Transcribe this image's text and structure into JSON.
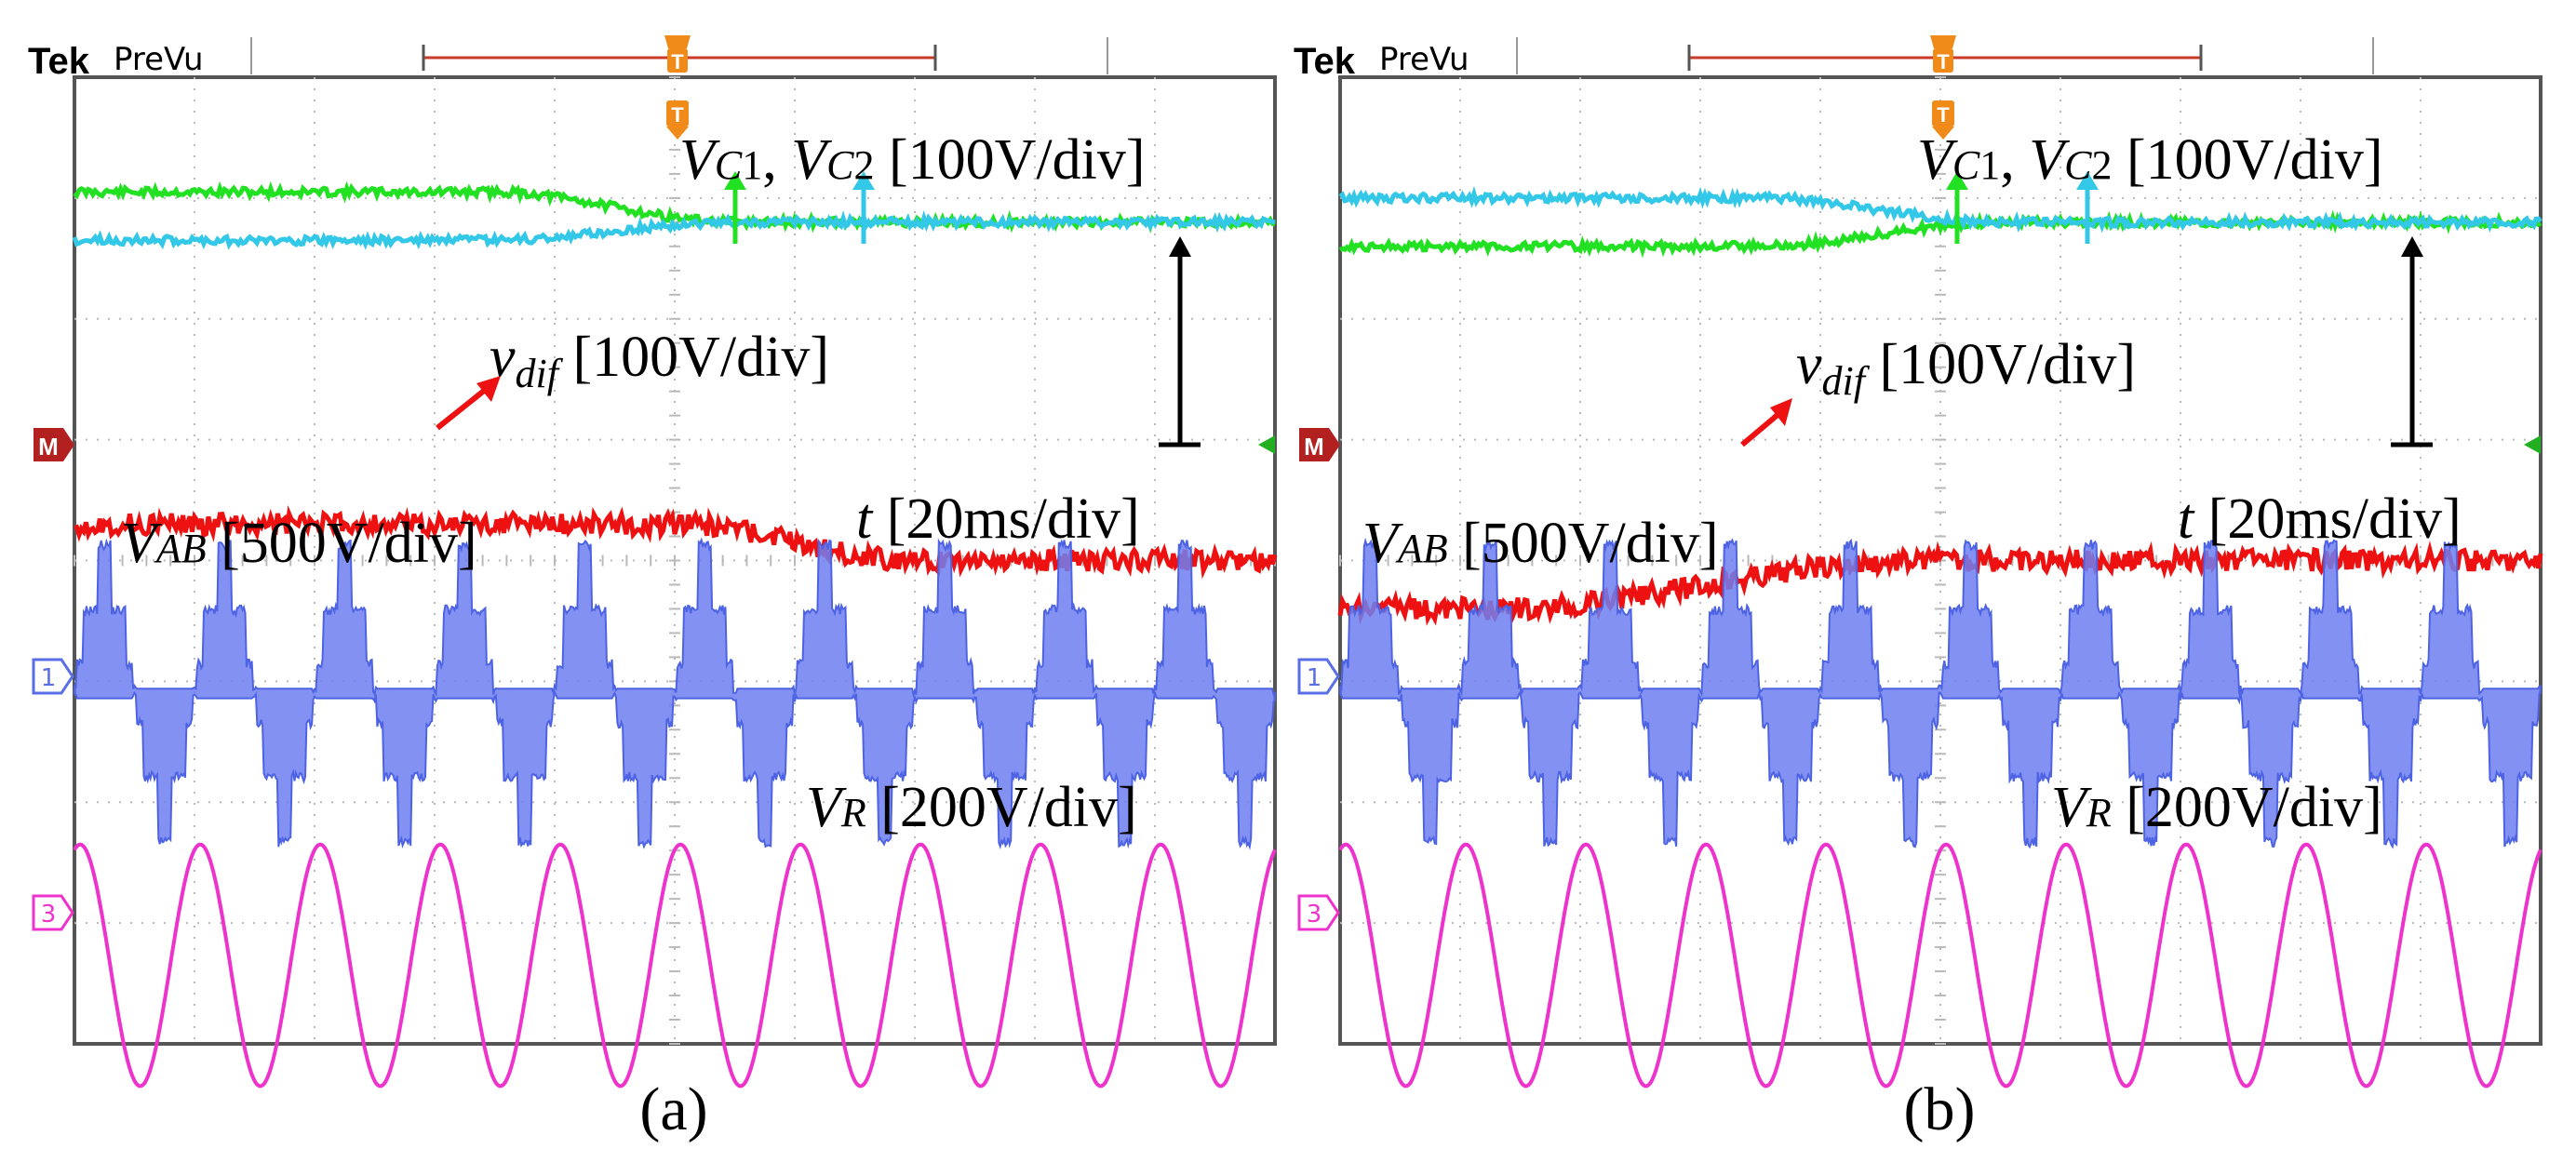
{
  "scope": {
    "brand": "Tek",
    "mode": "PreVu",
    "trigger_marker": "T",
    "markers": {
      "math": "M",
      "ch1": "1",
      "ch3": "3"
    }
  },
  "colors": {
    "vc1": "#22e022",
    "vc2": "#33c8e8",
    "vdif": "#ee1111",
    "vab": "#5a6fe6",
    "vr": "#ee33cc",
    "trigger": "#f08a18",
    "grid": "#b9b9b9",
    "frame": "#555555",
    "record_bar": "#c83a2a",
    "annot_arrow": "#000000"
  },
  "panels": [
    {
      "caption": "(a)",
      "labels": {
        "vc_v1": "V",
        "vc_s1": "C",
        "vc_n1": "1",
        "vc_sep": ", ",
        "vc_v2": "V",
        "vc_s2": "C",
        "vc_n2": "2",
        "vc_scale": " [100V/div]",
        "vdif_v": "v",
        "vdif_s": "dif",
        "vdif_scale": " [100V/div]",
        "t_v": "t",
        "t_scale": " [20ms/div]",
        "vab_v": "V",
        "vab_s": "AB",
        "vab_scale": " [500V/div]",
        "vr_v": "V",
        "vr_s": "R",
        "vr_scale": " [200V/div]"
      }
    },
    {
      "caption": "(b)",
      "labels": {
        "vc_v1": "V",
        "vc_s1": "C",
        "vc_n1": "1",
        "vc_sep": ", ",
        "vc_v2": "V",
        "vc_s2": "C",
        "vc_n2": "2",
        "vc_scale": " [100V/div]",
        "vdif_v": "v",
        "vdif_s": "dif",
        "vdif_scale": " [100V/div]",
        "t_v": "t",
        "t_scale": " [20ms/div]",
        "vab_v": "V",
        "vab_s": "AB",
        "vab_scale": " [500V/div]",
        "vr_v": "V",
        "vr_s": "R",
        "vr_scale": " [200V/div]"
      }
    }
  ],
  "chart_data": [
    {
      "type": "line",
      "panel": "(a)",
      "grid": true,
      "divisions": {
        "x": 10,
        "y": 8
      },
      "x_per_div": "20ms",
      "series": [
        {
          "name": "VC1",
          "div_per_volt": "100V/div",
          "start_level_div": 7.05,
          "end_level_div": 6.8,
          "transition_div": [
            3.5,
            5.5
          ]
        },
        {
          "name": "VC2",
          "div_per_volt": "100V/div",
          "start_level_div": 6.65,
          "end_level_div": 6.8,
          "transition_div": [
            3.5,
            5.5
          ]
        },
        {
          "name": "vdif",
          "div_per_volt": "100V/div",
          "start_level_div": 4.3,
          "end_level_div": 4.0,
          "transition_div": [
            5.0,
            7.0
          ]
        },
        {
          "name": "VAB",
          "div_per_volt": "500V/div",
          "waveform": "multilevel-square",
          "cycles": 10,
          "amplitude_div": 1.2,
          "center_div": 2.9
        },
        {
          "name": "VR",
          "div_per_volt": "200V/div",
          "waveform": "sine",
          "cycles": 10,
          "amplitude_div": 1.0,
          "center_div": 0.65
        }
      ]
    },
    {
      "type": "line",
      "panel": "(b)",
      "grid": true,
      "divisions": {
        "x": 10,
        "y": 8
      },
      "x_per_div": "20ms",
      "series": [
        {
          "name": "VC1",
          "div_per_volt": "100V/div",
          "start_level_div": 6.6,
          "end_level_div": 6.8,
          "transition_div": [
            3.5,
            5.5
          ]
        },
        {
          "name": "VC2",
          "div_per_volt": "100V/div",
          "start_level_div": 7.0,
          "end_level_div": 6.8,
          "transition_div": [
            3.5,
            5.5
          ]
        },
        {
          "name": "vdif",
          "div_per_volt": "100V/div",
          "start_level_div": 3.6,
          "end_level_div": 4.0,
          "transition_div": [
            1.3,
            4.8
          ]
        },
        {
          "name": "VAB",
          "div_per_volt": "500V/div",
          "waveform": "multilevel-square",
          "cycles": 10,
          "amplitude_div": 1.2,
          "center_div": 2.9
        },
        {
          "name": "VR",
          "div_per_volt": "200V/div",
          "waveform": "sine",
          "cycles": 10,
          "amplitude_div": 1.0,
          "center_div": 0.65
        }
      ]
    }
  ]
}
